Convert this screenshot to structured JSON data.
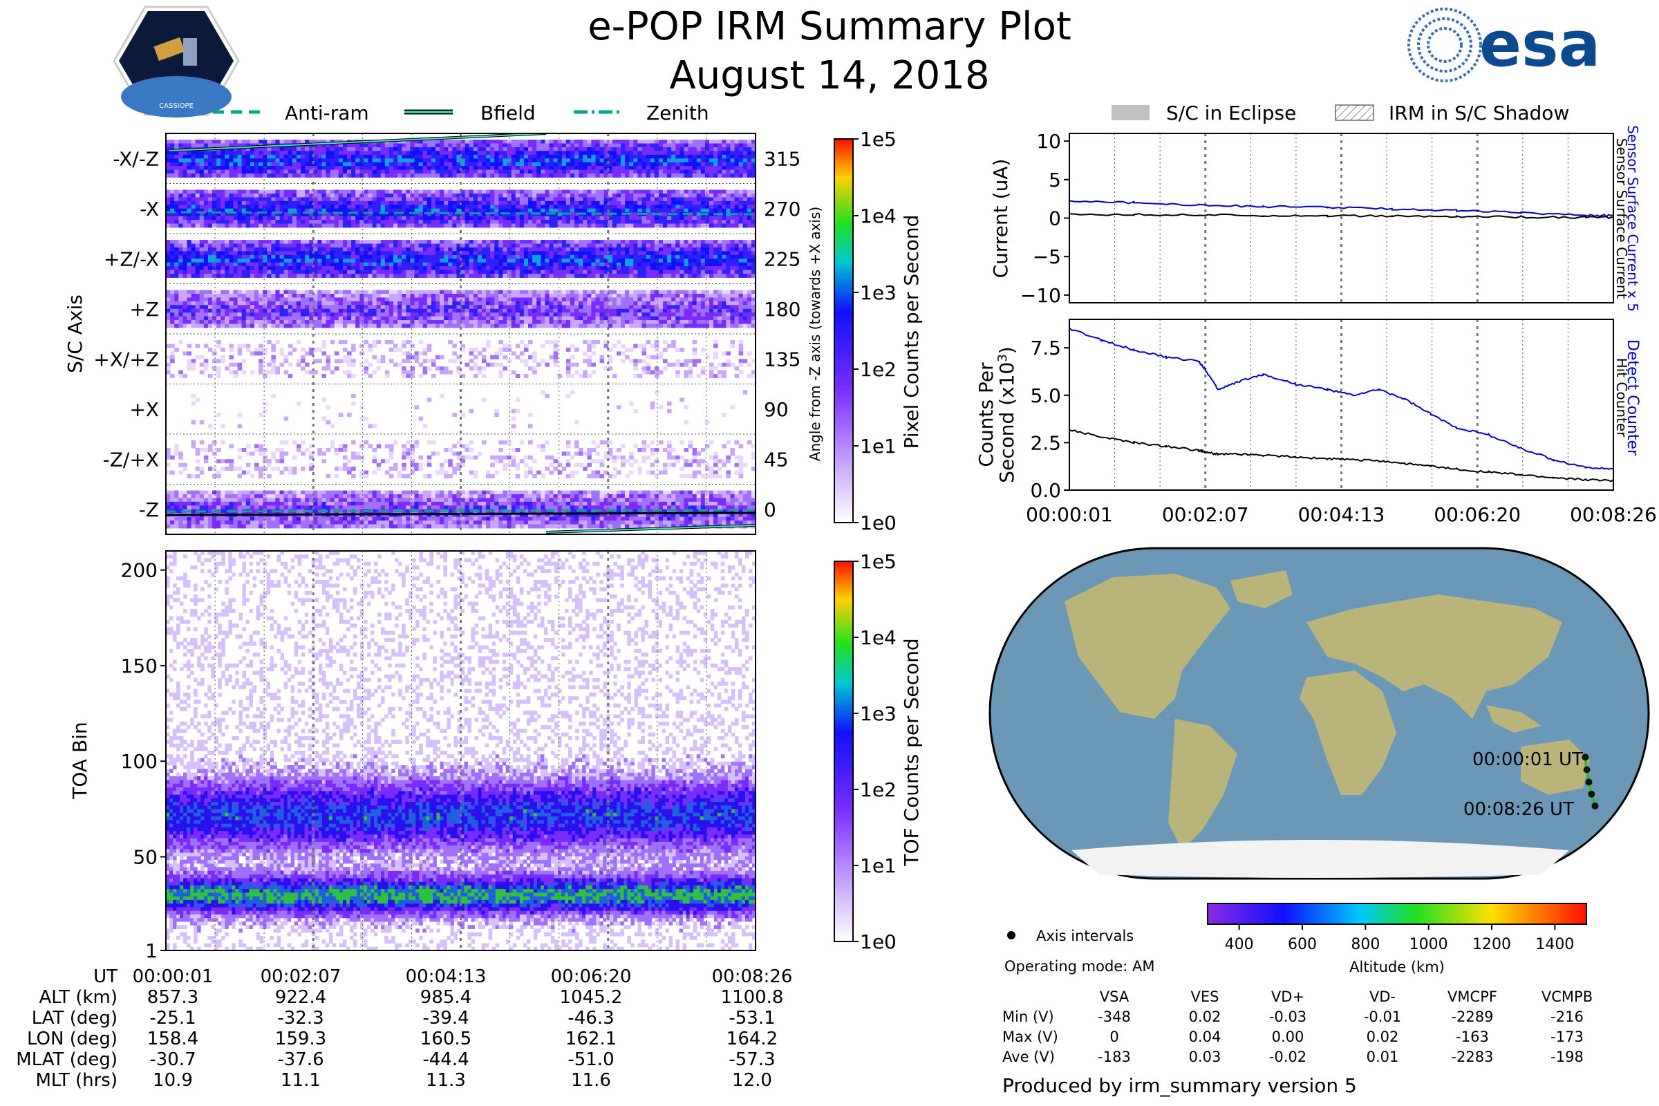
{
  "title": "e-POP IRM Summary Plot",
  "subtitle": "August 14, 2018",
  "logos": {
    "left_text": "CASSIOPE",
    "right_text": "esa"
  },
  "colors": {
    "current_blue": "#0000cc",
    "current_black": "#000000",
    "track_dot": "#111111",
    "ocean": "#6c98b8",
    "land": "#b8b47a",
    "ice": "#f2f2f2"
  },
  "time_ticks": [
    "00:00:01",
    "00:02:07",
    "00:04:13",
    "00:06:20",
    "00:08:26"
  ],
  "chart_data": [
    {
      "name": "angle-panel",
      "type": "heatmap",
      "ylabel_left": "S/C Axis",
      "ylabel_right": "Angle from -Z axis (towards +X axis)",
      "axis_labels": [
        "-X/-Z",
        "-X",
        "+Z/-X",
        "+Z",
        "+X/+Z",
        "+X",
        "-Z/+X",
        "-Z"
      ],
      "angle_ticks": [
        "315",
        "270",
        "225",
        "180",
        "135",
        "90",
        "45",
        "0"
      ],
      "legend": [
        "Anti-ram",
        "Bfield",
        "Zenith"
      ],
      "colorbar_label": "Pixel Counts per Second",
      "colorbar_ticks": [
        "1e5",
        "1e4",
        "1e3",
        "1e2",
        "1e1",
        "1e0"
      ],
      "bands": [
        {
          "axis": "-X/-Z",
          "intensity": 0.7
        },
        {
          "axis": "-X",
          "intensity": 0.65
        },
        {
          "axis": "+Z/-X",
          "intensity": 0.7
        },
        {
          "axis": "+Z",
          "intensity": 0.45
        },
        {
          "axis": "+X/+Z",
          "intensity": 0.15
        },
        {
          "axis": "+X",
          "intensity": 0.03
        },
        {
          "axis": "-Z/+X",
          "intensity": 0.15
        },
        {
          "axis": "-Z",
          "intensity": 0.45
        }
      ]
    },
    {
      "name": "toa-panel",
      "type": "heatmap",
      "ylabel": "TOA Bin",
      "yticks": [
        "200",
        "150",
        "100",
        "50",
        "1"
      ],
      "ylim": [
        1,
        210
      ],
      "colorbar_label": "TOF Counts per Second",
      "colorbar_ticks": [
        "1e5",
        "1e4",
        "1e3",
        "1e2",
        "1e1",
        "1e0"
      ],
      "bands": [
        {
          "center": 72,
          "width": 18,
          "peak": "1e2"
        },
        {
          "center": 30,
          "width": 10,
          "peak": "1e3"
        }
      ]
    },
    {
      "name": "current-panel",
      "type": "line",
      "ylabel": "Current (uA)",
      "ylim": [
        -11,
        11
      ],
      "yticks": [
        "10",
        "5",
        "0",
        "−5",
        "−10"
      ],
      "legend": [
        "S/C in Eclipse",
        "IRM in S/C Shadow"
      ],
      "right_label_1": "Sensor Surface Current x 5",
      "right_label_2": "Sensor Surface Current",
      "x": [
        0,
        1,
        2,
        3,
        4,
        5,
        6,
        7,
        8,
        8.43
      ],
      "series": [
        {
          "name": "Sensor Surface Current x 5",
          "values": [
            2.3,
            2.0,
            1.7,
            1.5,
            1.4,
            1.2,
            1.0,
            0.7,
            0.4,
            0.3
          ]
        },
        {
          "name": "Sensor Surface Current",
          "values": [
            0.5,
            0.45,
            0.4,
            0.35,
            0.3,
            0.25,
            0.2,
            0.15,
            0.1,
            0.08
          ]
        }
      ]
    },
    {
      "name": "counts-panel",
      "type": "line",
      "ylabel_1": "Counts Per",
      "ylabel_2": "Second (x10",
      "ylabel_exp": "3",
      "ylabel_close": ")",
      "ylim": [
        0,
        9
      ],
      "yticks": [
        "7.5",
        "5.0",
        "2.5",
        "0.0"
      ],
      "right_label_1": "Detect Counter",
      "right_label_2": "Hit Counter",
      "x": [
        0,
        0.5,
        1,
        1.5,
        2,
        2.1,
        2.3,
        2.6,
        3,
        3.5,
        4,
        4.4,
        4.8,
        5.2,
        5.6,
        6,
        6.5,
        7,
        7.5,
        8,
        8.43
      ],
      "series": [
        {
          "name": "Detect Counter",
          "values": [
            8.5,
            7.9,
            7.4,
            7.0,
            6.8,
            6.4,
            5.3,
            5.7,
            6.1,
            5.6,
            5.3,
            5.0,
            5.3,
            4.8,
            4.0,
            3.3,
            2.9,
            2.2,
            1.6,
            1.2,
            1.1
          ]
        },
        {
          "name": "Hit Counter",
          "values": [
            3.2,
            2.8,
            2.5,
            2.3,
            2.1,
            2.0,
            1.9,
            1.9,
            1.85,
            1.75,
            1.65,
            1.6,
            1.55,
            1.4,
            1.25,
            1.1,
            0.95,
            0.8,
            0.65,
            0.55,
            0.5
          ]
        }
      ]
    },
    {
      "name": "map-panel",
      "type": "scatter",
      "start_label": "00:00:01 UT",
      "end_label": "00:08:26 UT",
      "legend_dot_label": "Axis intervals",
      "operating_mode": "Operating mode: AM",
      "altitude_label": "Altitude (km)",
      "altitude_ticks": [
        "400",
        "600",
        "800",
        "1000",
        "1200",
        "1400"
      ],
      "altitude_range": [
        300,
        1500
      ],
      "track": [
        {
          "lat": -25.1,
          "lon": 158.4
        },
        {
          "lat": -32.3,
          "lon": 159.3
        },
        {
          "lat": -39.4,
          "lon": 160.5
        },
        {
          "lat": -46.3,
          "lon": 162.1
        },
        {
          "lat": -53.1,
          "lon": 164.2
        }
      ]
    }
  ],
  "ephemeris": {
    "rows": [
      {
        "label": "UT",
        "values": [
          "00:00:01",
          "00:02:07",
          "00:04:13",
          "00:06:20",
          "00:08:26"
        ]
      },
      {
        "label": "ALT (km)",
        "values": [
          "857.3",
          "922.4",
          "985.4",
          "1045.2",
          "1100.8"
        ]
      },
      {
        "label": "LAT (deg)",
        "values": [
          "-25.1",
          "-32.3",
          "-39.4",
          "-46.3",
          "-53.1"
        ]
      },
      {
        "label": "LON (deg)",
        "values": [
          "158.4",
          "159.3",
          "160.5",
          "162.1",
          "164.2"
        ]
      },
      {
        "label": "MLAT (deg)",
        "values": [
          "-30.7",
          "-37.6",
          "-44.4",
          "-51.0",
          "-57.3"
        ]
      },
      {
        "label": "MLT (hrs)",
        "values": [
          "10.9",
          "11.1",
          "11.3",
          "11.6",
          "12.0"
        ]
      }
    ]
  },
  "voltage_table": {
    "headers": [
      "VSA",
      "VES",
      "VD+",
      "VD-",
      "VMCPF",
      "VCMPB"
    ],
    "rows": [
      {
        "label": "Min (V)",
        "values": [
          "-348",
          "0.02",
          "-0.03",
          "-0.01",
          "-2289",
          "-216"
        ]
      },
      {
        "label": "Max (V)",
        "values": [
          "0",
          "0.04",
          "0.00",
          "0.02",
          "-163",
          "-173"
        ]
      },
      {
        "label": "Ave (V)",
        "values": [
          "-183",
          "0.03",
          "-0.02",
          "0.01",
          "-2283",
          "-198"
        ]
      }
    ]
  },
  "footer": "Produced by irm_summary version 5"
}
